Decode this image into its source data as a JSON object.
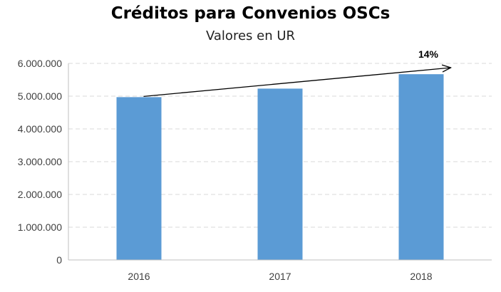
{
  "chart_data": {
    "type": "bar",
    "title": "Créditos para Convenios OSCs",
    "subtitle": "Valores en UR",
    "categories": [
      "2016",
      "2017",
      "2018"
    ],
    "values": [
      4970000,
      5230000,
      5670000
    ],
    "ylim": [
      0,
      6000000
    ],
    "y_ticks": [
      0,
      1000000,
      2000000,
      3000000,
      4000000,
      5000000,
      6000000
    ],
    "y_tick_labels": [
      "0",
      "1.000.000",
      "2.000.000",
      "3.000.000",
      "4.000.000",
      "5.000.000",
      "6.000.000"
    ],
    "xlabel": "",
    "ylabel": "",
    "grid": true,
    "bar_color": "#5B9BD5",
    "annotation": {
      "text": "14%",
      "from_category": "2016",
      "to_category": "2018"
    }
  }
}
